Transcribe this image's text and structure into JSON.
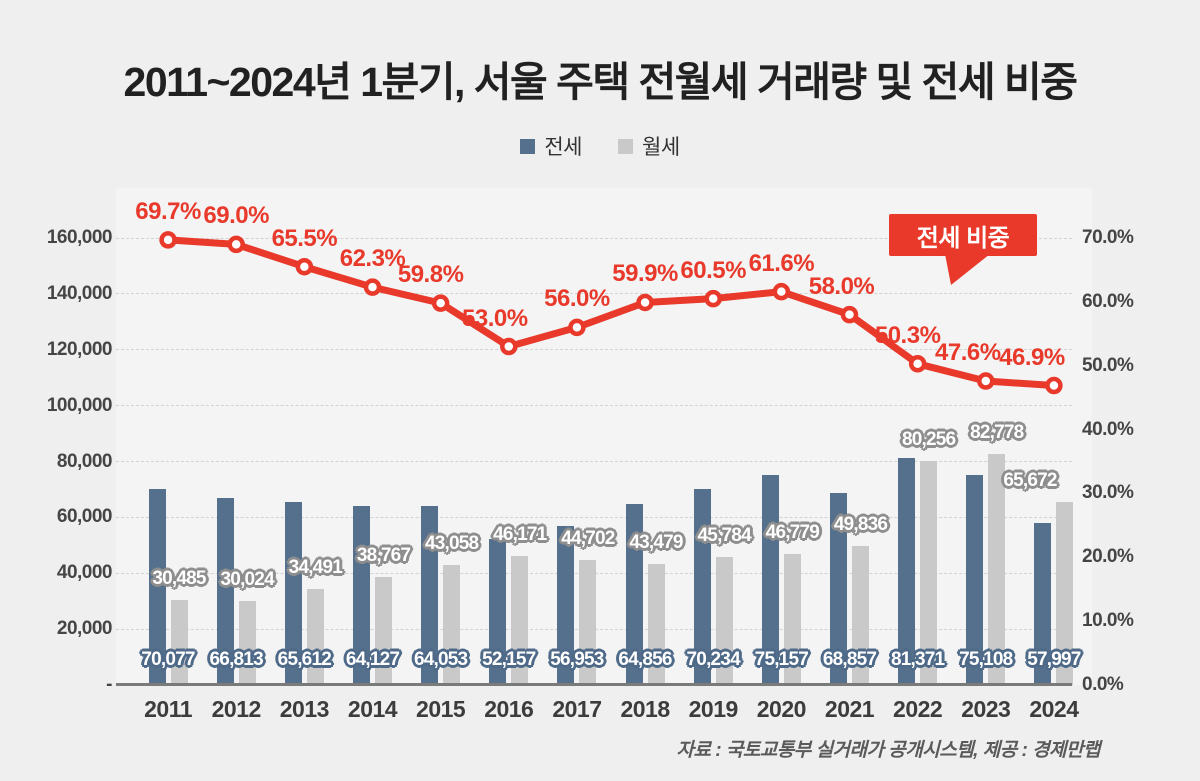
{
  "title": "2011~2024년 1분기, 서울 주택 전월세 거래량 및 전세 비중",
  "legend": {
    "items": [
      {
        "label": "전세",
        "color": "#54708d"
      },
      {
        "label": "월세",
        "color": "#c9c9c9"
      }
    ]
  },
  "source": "자료 : 국토교통부 실거래가 공개시스템, 제공 : 경제만랩",
  "colors": {
    "jeonse_bar": "#54708d",
    "wolse_bar": "#c9c9c9",
    "ratio_line": "#e8392b",
    "background": "#efefef"
  },
  "chart_data": {
    "type": "combo",
    "title": "2011~2024년 1분기, 서울 주택 전월세 거래량 및 전세 비중",
    "categories": [
      "2011",
      "2012",
      "2013",
      "2014",
      "2015",
      "2016",
      "2017",
      "2018",
      "2019",
      "2020",
      "2021",
      "2022",
      "2023",
      "2024"
    ],
    "series": [
      {
        "name": "전세",
        "type": "bar",
        "axis": "left",
        "color": "#54708d",
        "values": [
          70077,
          66813,
          65612,
          64127,
          64053,
          52157,
          56953,
          64856,
          70234,
          75157,
          68857,
          81371,
          75108,
          57997
        ]
      },
      {
        "name": "월세",
        "type": "bar",
        "axis": "left",
        "color": "#c9c9c9",
        "values": [
          30485,
          30024,
          34491,
          38767,
          43058,
          46171,
          44702,
          43479,
          45784,
          46779,
          49836,
          80256,
          82778,
          65672
        ]
      },
      {
        "name": "전세 비중",
        "type": "line",
        "axis": "right",
        "color": "#e8392b",
        "values": [
          69.7,
          69.0,
          65.5,
          62.3,
          59.8,
          53.0,
          56.0,
          59.9,
          60.5,
          61.6,
          58.0,
          50.3,
          47.6,
          46.9
        ]
      }
    ],
    "left_axis": {
      "max": 160000,
      "step": 20000,
      "tick_labels_top_down": [
        "160,000",
        "140,000",
        "120,000",
        "100,000",
        "80,000",
        "60,000",
        "40,000",
        "20,000",
        "-"
      ]
    },
    "right_axis": {
      "max": 70,
      "step": 10,
      "tick_labels_top_down": [
        "70.0%",
        "60.0%",
        "50.0%",
        "40.0%",
        "30.0%",
        "20.0%",
        "10.0%",
        "0.0%"
      ]
    },
    "callout": {
      "label": "전세 비중",
      "color": "#e8392b"
    },
    "grid": "horizontal-dashed",
    "legend_position": "top-center",
    "bar_value_label_style": {
      "전세": "bottom-of-bar",
      "월세": "above-bar"
    },
    "line_label_dx": [
      0,
      0,
      0,
      0,
      -10,
      -14,
      0,
      0,
      0,
      0,
      -8,
      -10,
      -18,
      -22
    ]
  }
}
